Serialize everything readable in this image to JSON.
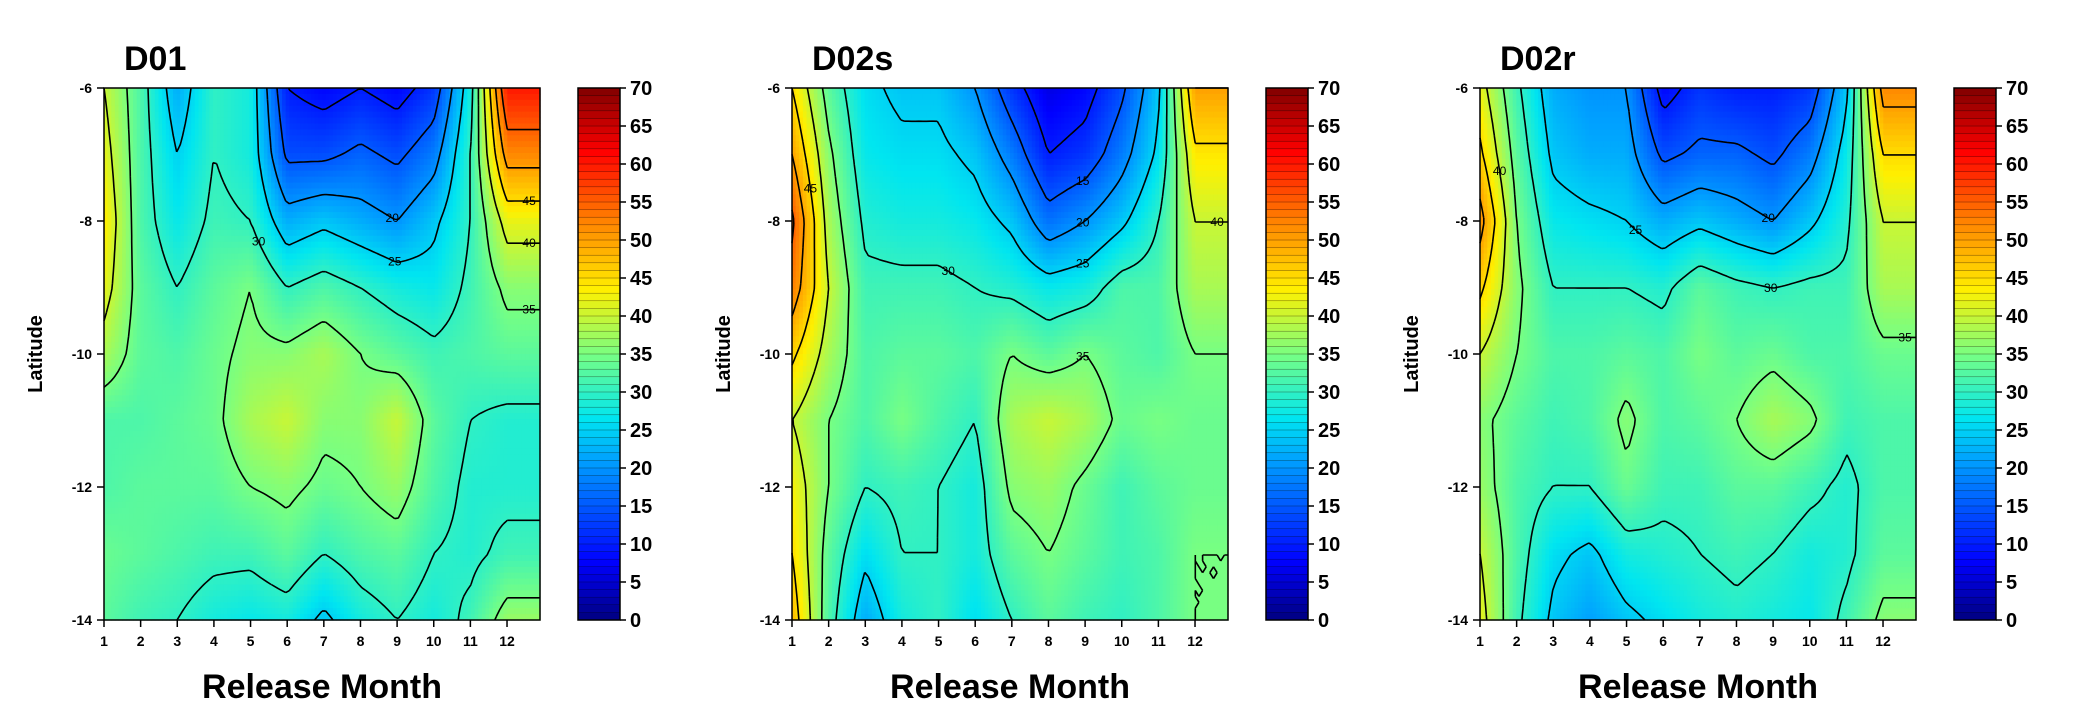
{
  "figure": {
    "panels": [
      {
        "title": "D01",
        "xlabel": "Release Month",
        "ylabel": "Latitude"
      },
      {
        "title": "D02s",
        "xlabel": "Release Month",
        "ylabel": "Latitude"
      },
      {
        "title": "D02r",
        "xlabel": "Release Month",
        "ylabel": "Latitude"
      }
    ]
  },
  "chart_data": [
    {
      "type": "heatmap",
      "title": "D01",
      "xlabel": "Release Month",
      "ylabel": "Latitude",
      "x": [
        1,
        2,
        3,
        4,
        5,
        6,
        7,
        8,
        9,
        10,
        11,
        12
      ],
      "y": [
        -6,
        -7,
        -8,
        -9,
        -10,
        -11,
        -12,
        -13,
        -14
      ],
      "xlim": [
        1,
        12.9
      ],
      "ylim": [
        -14,
        -6
      ],
      "x_ticks": [
        "1",
        "2",
        "3",
        "4",
        "5",
        "6",
        "7",
        "8",
        "9",
        "10",
        "11",
        "12"
      ],
      "y_ticks": [
        "-6",
        "-8",
        "-10",
        "-12",
        "-14"
      ],
      "z": [
        [
          40,
          32,
          22,
          30,
          28,
          10,
          8,
          10,
          8,
          12,
          28,
          60
        ],
        [
          42,
          32,
          25,
          30,
          28,
          14,
          14,
          16,
          14,
          18,
          30,
          52
        ],
        [
          44,
          32,
          27,
          31,
          30,
          22,
          24,
          22,
          20,
          24,
          30,
          42
        ],
        [
          42,
          33,
          30,
          33,
          35,
          30,
          32,
          30,
          28,
          27,
          31,
          36
        ],
        [
          38,
          33,
          32,
          34,
          36,
          36,
          38,
          35,
          33,
          31,
          32,
          33
        ],
        [
          32,
          32,
          33,
          34,
          38,
          40,
          36,
          36,
          40,
          33,
          30,
          29
        ],
        [
          32,
          33,
          33,
          33,
          35,
          36,
          34,
          35,
          37,
          32,
          29,
          29
        ],
        [
          34,
          33,
          32,
          31,
          31,
          33,
          30,
          32,
          33,
          30,
          29,
          31
        ],
        [
          33,
          31,
          30,
          28,
          27,
          28,
          24,
          28,
          30,
          28,
          31,
          37
        ]
      ],
      "colorbar": {
        "min": 0,
        "max": 70,
        "ticks": [
          "0",
          "5",
          "10",
          "15",
          "20",
          "25",
          "30",
          "35",
          "40",
          "45",
          "50",
          "55",
          "60",
          "65",
          "70"
        ]
      },
      "contour_levels": [
        10,
        15,
        20,
        25,
        30,
        35,
        40,
        45,
        50,
        55
      ]
    },
    {
      "type": "heatmap",
      "title": "D02s",
      "xlabel": "Release Month",
      "ylabel": "Latitude",
      "x": [
        1,
        2,
        3,
        4,
        5,
        6,
        7,
        8,
        9,
        10,
        11,
        12
      ],
      "y": [
        -6,
        -7,
        -8,
        -9,
        -10,
        -11,
        -12,
        -13,
        -14
      ],
      "xlim": [
        1,
        12.9
      ],
      "ylim": [
        -14,
        -6
      ],
      "x_ticks": [
        "1",
        "2",
        "3",
        "4",
        "5",
        "6",
        "7",
        "8",
        "9",
        "10",
        "11",
        "12"
      ],
      "y_ticks": [
        "-6",
        "-8",
        "-10",
        "-12",
        "-14"
      ],
      "z": [
        [
          45,
          33,
          26,
          24,
          24,
          20,
          12,
          6,
          8,
          14,
          24,
          50
        ],
        [
          50,
          36,
          27,
          26,
          26,
          24,
          18,
          10,
          12,
          18,
          26,
          44
        ],
        [
          56,
          38,
          29,
          28,
          28,
          27,
          24,
          17,
          20,
          24,
          30,
          40
        ],
        [
          53,
          40,
          31,
          31,
          31,
          30,
          29,
          27,
          28,
          32,
          32,
          38
        ],
        [
          46,
          38,
          32,
          33,
          33,
          32,
          35,
          33,
          35,
          33,
          32,
          35
        ],
        [
          40,
          35,
          32,
          35,
          32,
          30,
          38,
          40,
          38,
          34,
          35,
          34
        ],
        [
          43,
          35,
          30,
          31,
          30,
          28,
          36,
          37,
          34,
          31,
          33,
          34
        ],
        [
          45,
          33,
          26,
          30,
          30,
          28,
          33,
          35,
          33,
          31,
          32,
          35
        ],
        [
          48,
          32,
          22,
          28,
          30,
          26,
          30,
          33,
          31,
          30,
          32,
          35
        ]
      ],
      "colorbar": {
        "min": 0,
        "max": 70,
        "ticks": [
          "0",
          "5",
          "10",
          "15",
          "20",
          "25",
          "30",
          "35",
          "40",
          "45",
          "50",
          "55",
          "60",
          "65",
          "70"
        ]
      },
      "contour_levels": [
        10,
        15,
        20,
        25,
        30,
        35,
        40,
        45,
        50,
        55
      ]
    },
    {
      "type": "heatmap",
      "title": "D02r",
      "xlabel": "Release Month",
      "ylabel": "Latitude",
      "x": [
        1,
        2,
        3,
        4,
        5,
        6,
        7,
        8,
        9,
        10,
        11,
        12
      ],
      "y": [
        -6,
        -7,
        -8,
        -9,
        -10,
        -11,
        -12,
        -13,
        -14
      ],
      "xlim": [
        1,
        12.9
      ],
      "ylim": [
        -14,
        -6
      ],
      "x_ticks": [
        "1",
        "2",
        "3",
        "4",
        "5",
        "6",
        "7",
        "8",
        "9",
        "10",
        "11",
        "12"
      ],
      "y_ticks": [
        "-6",
        "-8",
        "-10",
        "-12",
        "-14"
      ],
      "z": [
        [
          42,
          31,
          22,
          20,
          20,
          8,
          12,
          10,
          10,
          12,
          24,
          52
        ],
        [
          46,
          33,
          24,
          22,
          22,
          14,
          16,
          16,
          14,
          18,
          27,
          45
        ],
        [
          52,
          35,
          27,
          26,
          25,
          22,
          24,
          22,
          20,
          24,
          29,
          40
        ],
        [
          46,
          36,
          30,
          30,
          30,
          29,
          33,
          31,
          30,
          31,
          31,
          38
        ],
        [
          40,
          35,
          32,
          32,
          33,
          32,
          35,
          33,
          34,
          32,
          32,
          34
        ],
        [
          36,
          33,
          31,
          32,
          36,
          32,
          33,
          35,
          38,
          36,
          31,
          32
        ],
        [
          37,
          32,
          30,
          30,
          34,
          31,
          31,
          33,
          33,
          31,
          29,
          32
        ],
        [
          40,
          32,
          26,
          24,
          28,
          29,
          30,
          31,
          30,
          28,
          29,
          33
        ],
        [
          42,
          31,
          24,
          21,
          24,
          26,
          28,
          29,
          28,
          27,
          31,
          36
        ]
      ],
      "colorbar": {
        "min": 0,
        "max": 70,
        "ticks": [
          "0",
          "5",
          "10",
          "15",
          "20",
          "25",
          "30",
          "35",
          "40",
          "45",
          "50",
          "55",
          "60",
          "65",
          "70"
        ]
      },
      "contour_levels": [
        10,
        15,
        20,
        25,
        30,
        35,
        40,
        45,
        50,
        55
      ]
    }
  ]
}
